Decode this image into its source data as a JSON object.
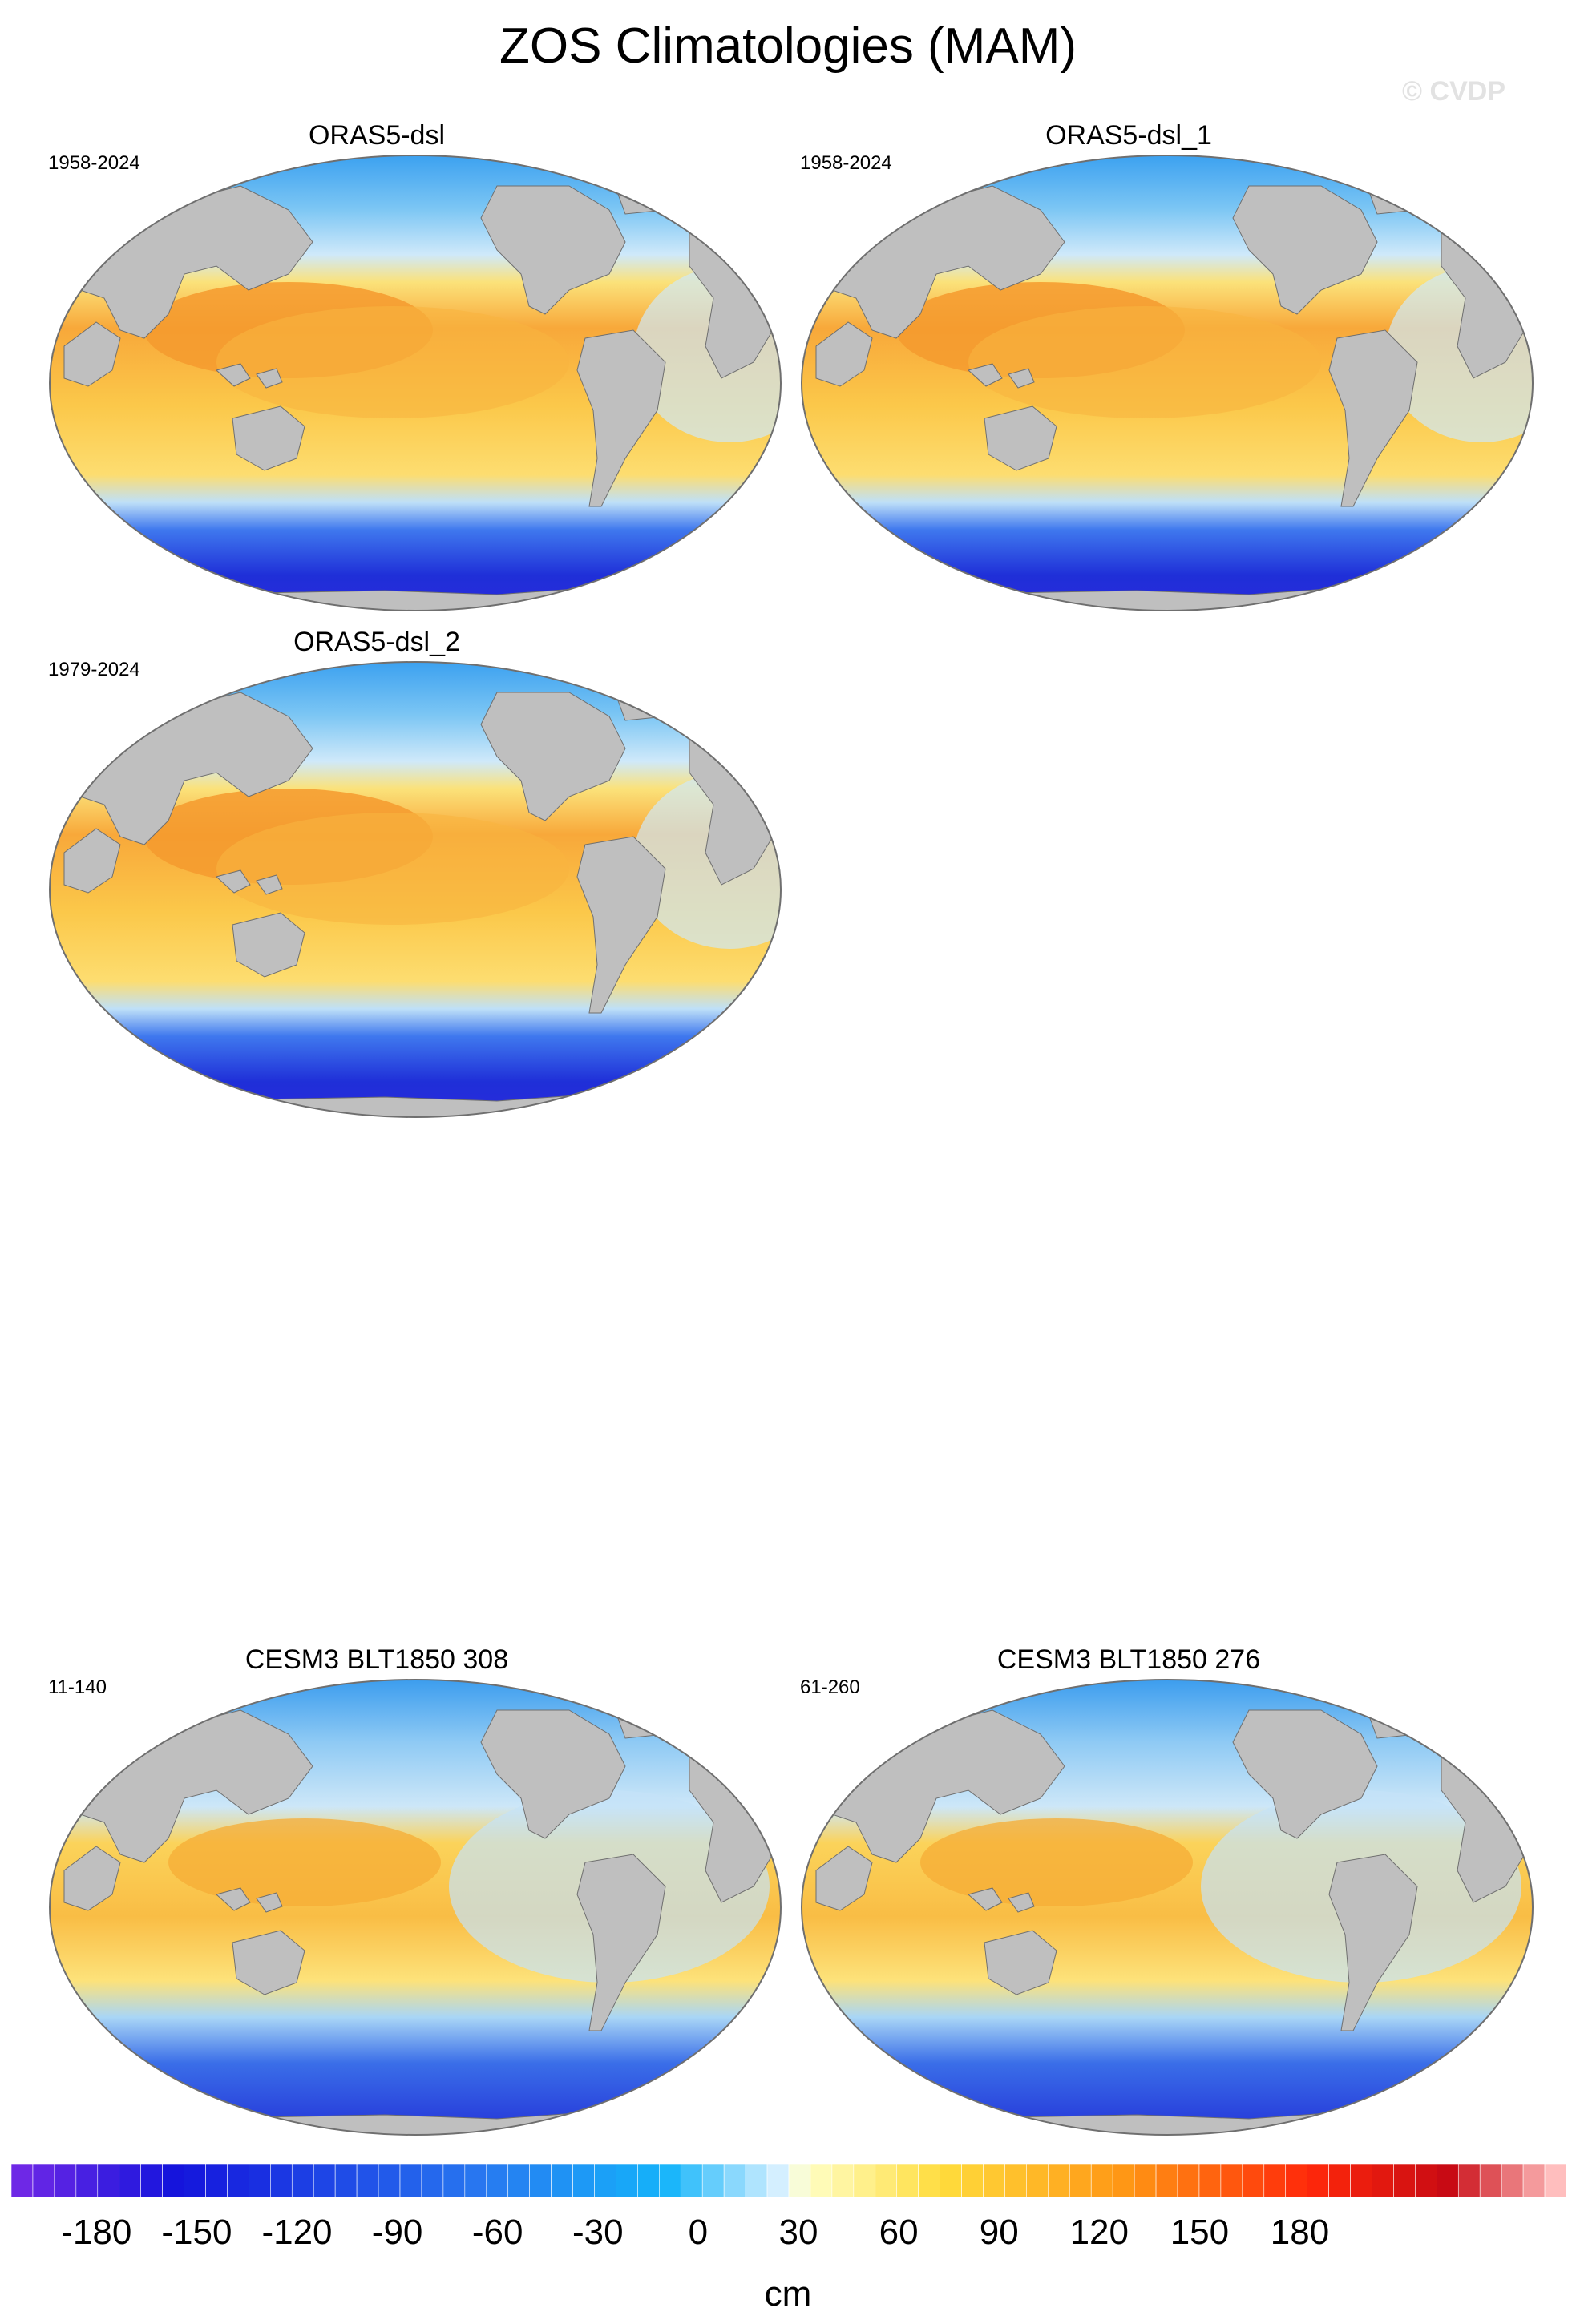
{
  "figure": {
    "title": "ZOS Climatologies (MAM)",
    "watermark": "© CVDP"
  },
  "colorbar": {
    "unit": "cm",
    "tick_labels": [
      "-180",
      "-150",
      "-120",
      "-90",
      "-60",
      "-30",
      "0",
      "30",
      "60",
      "90",
      "120",
      "150",
      "180"
    ]
  },
  "chart_data": [
    {
      "type": "heatmap",
      "title": "ORAS5-dsl",
      "period": "1958-2024",
      "variable": "ZOS",
      "season": "MAM",
      "units": "cm",
      "clim": [
        -200,
        200
      ],
      "projection": "robinson"
    },
    {
      "type": "heatmap",
      "title": "ORAS5-dsl_1",
      "period": "1958-2024",
      "variable": "ZOS",
      "season": "MAM",
      "units": "cm",
      "clim": [
        -200,
        200
      ],
      "projection": "robinson"
    },
    {
      "type": "heatmap",
      "title": "ORAS5-dsl_2",
      "period": "1979-2024",
      "variable": "ZOS",
      "season": "MAM",
      "units": "cm",
      "clim": [
        -200,
        200
      ],
      "projection": "robinson"
    },
    {
      "type": "heatmap",
      "title": "CESM3 BLT1850 308",
      "period": "11-140",
      "variable": "ZOS",
      "season": "MAM",
      "units": "cm",
      "clim": [
        -200,
        200
      ],
      "projection": "robinson"
    },
    {
      "type": "heatmap",
      "title": "CESM3 BLT1850 276",
      "period": "61-260",
      "variable": "ZOS",
      "season": "MAM",
      "units": "cm",
      "clim": [
        -200,
        200
      ],
      "projection": "robinson"
    }
  ]
}
